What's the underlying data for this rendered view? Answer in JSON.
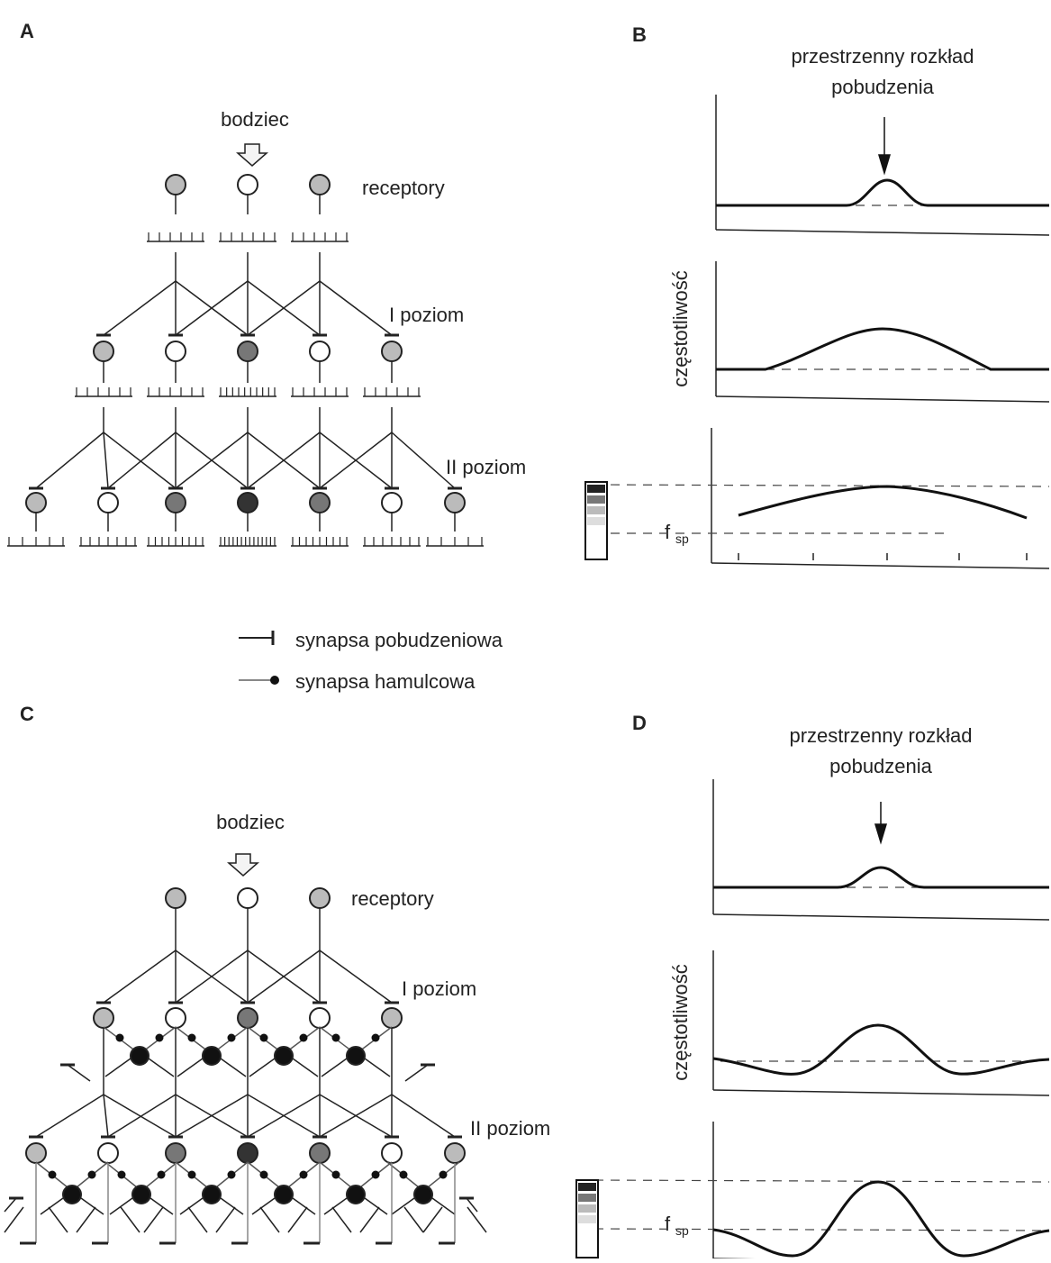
{
  "panels": {
    "A": {
      "label": "A",
      "stimulus": "bodziec",
      "receptors": "receptory",
      "level1": "I poziom",
      "level2": "II poziom"
    },
    "B": {
      "label": "B",
      "title": [
        "przestrzenny rozkład",
        "pobudzenia"
      ],
      "y_label": "częstotliwość",
      "spontaneous": {
        "main": "f",
        "sub": "sp"
      }
    },
    "C": {
      "label": "C",
      "stimulus": "bodziec",
      "receptors": "receptory",
      "level1": "I poziom",
      "level2": "II poziom"
    },
    "D": {
      "label": "D",
      "title": [
        "przestrzenny rozkład",
        "pobudzenia"
      ],
      "y_label": "częstotliwość",
      "spontaneous": {
        "main": "f",
        "sub": "sp"
      }
    }
  },
  "legend": {
    "excitatory": "synapsa pobudzeniowa",
    "inhibitory": "synapsa hamulcowa"
  }
}
